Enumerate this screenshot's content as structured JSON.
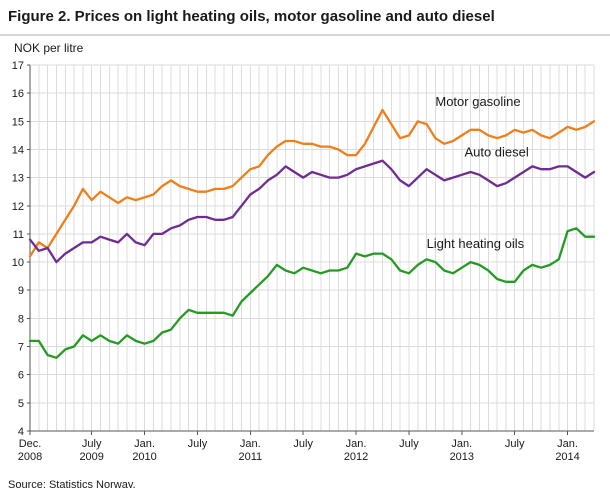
{
  "figure": {
    "title": "Figure 2. Prices on light heating oils, motor gasoline and auto diesel",
    "unit_label": "NOK per litre",
    "source": "Source: Statistics Norway."
  },
  "chart_data": {
    "type": "line",
    "title": "Figure 2. Prices on light heating oils, motor gasoline and auto diesel",
    "ylabel": "NOK per litre",
    "xlabel": "",
    "x_unit": "month",
    "x_start": "2008-12",
    "x_end": "2014-04",
    "ylim": [
      4,
      17
    ],
    "grid": true,
    "legend_position": "inline-annotations",
    "grid_color": "#dcdcdc",
    "axis_color": "#555555",
    "text_color": "#1a1a1a",
    "y_ticks": [
      4,
      5,
      6,
      7,
      8,
      9,
      10,
      11,
      12,
      13,
      14,
      15,
      16,
      17
    ],
    "x_ticks": [
      {
        "pos": 0,
        "lines": [
          "Dec.",
          "2008"
        ]
      },
      {
        "pos": 7,
        "lines": [
          "July",
          "2009"
        ]
      },
      {
        "pos": 13,
        "lines": [
          "Jan.",
          "2010"
        ]
      },
      {
        "pos": 19,
        "lines": [
          "July"
        ]
      },
      {
        "pos": 25,
        "lines": [
          "Jan.",
          "2011"
        ]
      },
      {
        "pos": 31,
        "lines": [
          "July"
        ]
      },
      {
        "pos": 37,
        "lines": [
          "Jan.",
          "2012"
        ]
      },
      {
        "pos": 43,
        "lines": [
          "July"
        ]
      },
      {
        "pos": 49,
        "lines": [
          "Jan.",
          "2013"
        ]
      },
      {
        "pos": 55,
        "lines": [
          "July"
        ]
      },
      {
        "pos": 61,
        "lines": [
          "Jan.",
          "2014"
        ]
      }
    ],
    "series": [
      {
        "name": "Motor gasoline",
        "color": "#ef7f1a",
        "values": [
          10.2,
          10.7,
          10.5,
          11.0,
          11.5,
          12.0,
          12.6,
          12.2,
          12.5,
          12.3,
          12.1,
          12.3,
          12.2,
          12.3,
          12.4,
          12.7,
          12.9,
          12.7,
          12.6,
          12.5,
          12.5,
          12.6,
          12.6,
          12.7,
          13.0,
          13.3,
          13.4,
          13.8,
          14.1,
          14.3,
          14.3,
          14.2,
          14.2,
          14.1,
          14.1,
          14.0,
          13.8,
          13.8,
          14.2,
          14.8,
          15.4,
          14.9,
          14.4,
          14.5,
          15.0,
          14.9,
          14.4,
          14.2,
          14.3,
          14.5,
          14.7,
          14.7,
          14.5,
          14.4,
          14.5,
          14.7,
          14.6,
          14.7,
          14.5,
          14.4,
          14.6,
          14.8,
          14.7,
          14.8,
          15.0
        ]
      },
      {
        "name": "Auto diesel",
        "color": "#6f2c91",
        "values": [
          10.8,
          10.4,
          10.5,
          10.0,
          10.3,
          10.5,
          10.7,
          10.7,
          10.9,
          10.8,
          10.7,
          11.0,
          10.7,
          10.6,
          11.0,
          11.0,
          11.2,
          11.3,
          11.5,
          11.6,
          11.6,
          11.5,
          11.5,
          11.6,
          12.0,
          12.4,
          12.6,
          12.9,
          13.1,
          13.4,
          13.2,
          13.0,
          13.2,
          13.1,
          13.0,
          13.0,
          13.1,
          13.3,
          13.4,
          13.5,
          13.6,
          13.3,
          12.9,
          12.7,
          13.0,
          13.3,
          13.1,
          12.9,
          13.0,
          13.1,
          13.2,
          13.1,
          12.9,
          12.7,
          12.8,
          13.0,
          13.2,
          13.4,
          13.3,
          13.3,
          13.4,
          13.4,
          13.2,
          13.0,
          13.2
        ]
      },
      {
        "name": "Light heating oils",
        "color": "#259b24",
        "values": [
          7.2,
          7.2,
          6.7,
          6.6,
          6.9,
          7.0,
          7.4,
          7.2,
          7.4,
          7.2,
          7.1,
          7.4,
          7.2,
          7.1,
          7.2,
          7.5,
          7.6,
          8.0,
          8.3,
          8.2,
          8.2,
          8.2,
          8.2,
          8.1,
          8.6,
          8.9,
          9.2,
          9.5,
          9.9,
          9.7,
          9.6,
          9.8,
          9.7,
          9.6,
          9.7,
          9.7,
          9.8,
          10.3,
          10.2,
          10.3,
          10.3,
          10.1,
          9.7,
          9.6,
          9.9,
          10.1,
          10.0,
          9.7,
          9.6,
          9.8,
          10.0,
          9.9,
          9.7,
          9.4,
          9.3,
          9.3,
          9.7,
          9.9,
          9.8,
          9.9,
          10.1,
          11.1,
          11.2,
          10.9,
          10.9
        ]
      }
    ],
    "annotations": [
      {
        "text": "Motor gasoline",
        "month": 46,
        "value": 15.55
      },
      {
        "text": "Auto diesel",
        "month": 49.3,
        "value": 13.75
      },
      {
        "text": "Light heating oils",
        "month": 45,
        "value": 10.5
      }
    ]
  }
}
